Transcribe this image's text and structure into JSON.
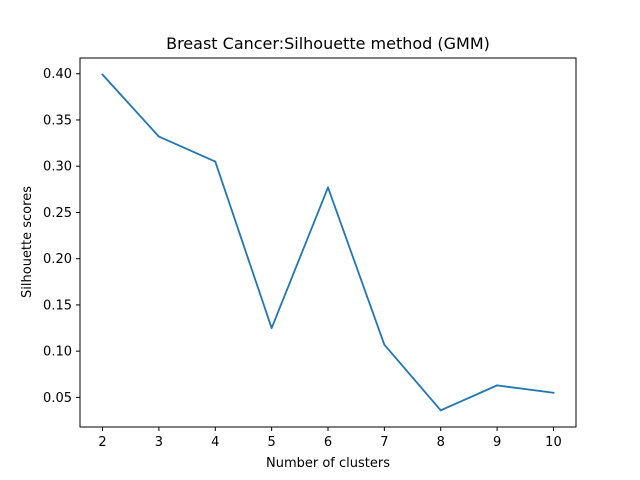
{
  "chart_data": {
    "type": "line",
    "title": "Breast Cancer:Silhouette method (GMM)",
    "xlabel": "Number of clusters",
    "ylabel": "Silhouette scores",
    "x": [
      2,
      3,
      4,
      5,
      6,
      7,
      8,
      9,
      10
    ],
    "series": [
      {
        "values": [
          0.399,
          0.332,
          0.305,
          0.125,
          0.277,
          0.107,
          0.036,
          0.063,
          0.055
        ],
        "color": "#1f77b4"
      }
    ],
    "xticks": [
      "2",
      "3",
      "4",
      "5",
      "6",
      "7",
      "8",
      "9",
      "10"
    ],
    "yticks": [
      "0.05",
      "0.10",
      "0.15",
      "0.20",
      "0.25",
      "0.30",
      "0.35",
      "0.40"
    ],
    "xlim": [
      1.6,
      10.4
    ],
    "ylim": [
      0.018,
      0.417
    ],
    "grid": false,
    "legend": "none"
  }
}
